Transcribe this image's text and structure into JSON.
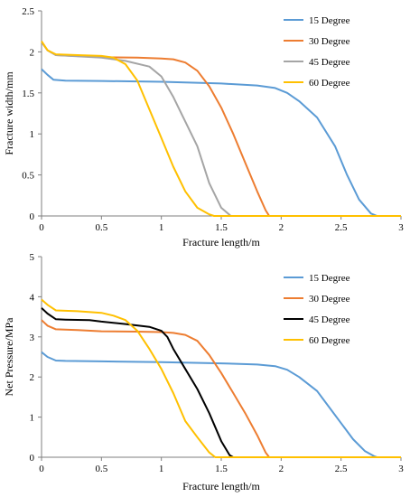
{
  "chart_data": [
    {
      "type": "line",
      "xlabel": "Fracture length/m",
      "ylabel": "Fracture width/mm",
      "xlim": [
        0,
        3
      ],
      "ylim": [
        0,
        2.5
      ],
      "xticks": [
        "0",
        "0.5",
        "1",
        "1.5",
        "2",
        "2.5",
        "3"
      ],
      "yticks": [
        "0",
        "0.5",
        "1",
        "1.5",
        "2",
        "2.5"
      ],
      "grid": false,
      "legend_position": "top-right",
      "series": [
        {
          "name": "15 Degree",
          "color": "#5B9BD5",
          "points": [
            [
              0,
              1.79
            ],
            [
              0.05,
              1.72
            ],
            [
              0.1,
              1.66
            ],
            [
              0.2,
              1.65
            ],
            [
              0.5,
              1.645
            ],
            [
              1.0,
              1.635
            ],
            [
              1.5,
              1.615
            ],
            [
              1.8,
              1.59
            ],
            [
              1.95,
              1.56
            ],
            [
              2.05,
              1.5
            ],
            [
              2.15,
              1.4
            ],
            [
              2.3,
              1.2
            ],
            [
              2.45,
              0.85
            ],
            [
              2.55,
              0.5
            ],
            [
              2.65,
              0.2
            ],
            [
              2.75,
              0.03
            ],
            [
              2.8,
              0
            ],
            [
              3.0,
              0
            ]
          ]
        },
        {
          "name": "30 Degree",
          "color": "#ED7D31",
          "points": [
            [
              0,
              2.12
            ],
            [
              0.05,
              2.02
            ],
            [
              0.12,
              1.96
            ],
            [
              0.5,
              1.935
            ],
            [
              0.8,
              1.93
            ],
            [
              1.0,
              1.92
            ],
            [
              1.1,
              1.91
            ],
            [
              1.2,
              1.87
            ],
            [
              1.3,
              1.77
            ],
            [
              1.4,
              1.58
            ],
            [
              1.5,
              1.32
            ],
            [
              1.6,
              1.0
            ],
            [
              1.7,
              0.65
            ],
            [
              1.8,
              0.3
            ],
            [
              1.87,
              0.07
            ],
            [
              1.9,
              0
            ],
            [
              3.0,
              0
            ]
          ]
        },
        {
          "name": "45 Degree",
          "color": "#A5A5A5",
          "points": [
            [
              0,
              2.12
            ],
            [
              0.05,
              2.02
            ],
            [
              0.12,
              1.96
            ],
            [
              0.5,
              1.93
            ],
            [
              0.7,
              1.89
            ],
            [
              0.9,
              1.82
            ],
            [
              1.0,
              1.7
            ],
            [
              1.1,
              1.45
            ],
            [
              1.2,
              1.15
            ],
            [
              1.3,
              0.85
            ],
            [
              1.4,
              0.4
            ],
            [
              1.5,
              0.1
            ],
            [
              1.58,
              0
            ],
            [
              3.0,
              0
            ]
          ]
        },
        {
          "name": "60 Degree",
          "color": "#FFC000",
          "points": [
            [
              0,
              2.13
            ],
            [
              0.05,
              2.02
            ],
            [
              0.12,
              1.97
            ],
            [
              0.3,
              1.96
            ],
            [
              0.5,
              1.95
            ],
            [
              0.6,
              1.93
            ],
            [
              0.7,
              1.85
            ],
            [
              0.8,
              1.65
            ],
            [
              0.9,
              1.3
            ],
            [
              1.0,
              0.95
            ],
            [
              1.1,
              0.6
            ],
            [
              1.2,
              0.3
            ],
            [
              1.3,
              0.1
            ],
            [
              1.4,
              0.02
            ],
            [
              1.44,
              0
            ],
            [
              3.0,
              0
            ]
          ]
        }
      ]
    },
    {
      "type": "line",
      "xlabel": "Fracture length/m",
      "ylabel": "Net Pressure/MPa",
      "xlim": [
        0,
        3
      ],
      "ylim": [
        0,
        5
      ],
      "xticks": [
        "0",
        "0.5",
        "1",
        "1.5",
        "2",
        "2.5",
        "3"
      ],
      "yticks": [
        "0",
        "1",
        "2",
        "3",
        "4",
        "5"
      ],
      "grid": false,
      "legend_position": "top-right",
      "series": [
        {
          "name": "15 Degree",
          "color": "#5B9BD5",
          "points": [
            [
              0,
              2.62
            ],
            [
              0.05,
              2.5
            ],
            [
              0.12,
              2.41
            ],
            [
              0.2,
              2.4
            ],
            [
              0.5,
              2.39
            ],
            [
              1.0,
              2.37
            ],
            [
              1.5,
              2.34
            ],
            [
              1.8,
              2.31
            ],
            [
              1.95,
              2.27
            ],
            [
              2.05,
              2.18
            ],
            [
              2.15,
              2.0
            ],
            [
              2.3,
              1.65
            ],
            [
              2.4,
              1.25
            ],
            [
              2.5,
              0.85
            ],
            [
              2.6,
              0.45
            ],
            [
              2.7,
              0.15
            ],
            [
              2.78,
              0.02
            ],
            [
              2.8,
              0
            ],
            [
              3.0,
              0
            ]
          ]
        },
        {
          "name": "30 Degree",
          "color": "#ED7D31",
          "points": [
            [
              0,
              3.42
            ],
            [
              0.05,
              3.28
            ],
            [
              0.12,
              3.19
            ],
            [
              0.3,
              3.17
            ],
            [
              0.5,
              3.14
            ],
            [
              0.8,
              3.13
            ],
            [
              1.0,
              3.12
            ],
            [
              1.1,
              3.1
            ],
            [
              1.2,
              3.05
            ],
            [
              1.3,
              2.9
            ],
            [
              1.4,
              2.55
            ],
            [
              1.5,
              2.1
            ],
            [
              1.6,
              1.6
            ],
            [
              1.7,
              1.1
            ],
            [
              1.8,
              0.55
            ],
            [
              1.87,
              0.12
            ],
            [
              1.9,
              0
            ],
            [
              3.0,
              0
            ]
          ]
        },
        {
          "name": "45 Degree",
          "color": "#000000",
          "points": [
            [
              0,
              3.72
            ],
            [
              0.05,
              3.58
            ],
            [
              0.12,
              3.44
            ],
            [
              0.2,
              3.43
            ],
            [
              0.4,
              3.42
            ],
            [
              0.5,
              3.38
            ],
            [
              0.7,
              3.32
            ],
            [
              0.9,
              3.25
            ],
            [
              1.0,
              3.15
            ],
            [
              1.05,
              3.0
            ],
            [
              1.1,
              2.7
            ],
            [
              1.2,
              2.2
            ],
            [
              1.3,
              1.7
            ],
            [
              1.4,
              1.1
            ],
            [
              1.5,
              0.4
            ],
            [
              1.57,
              0.05
            ],
            [
              1.6,
              0
            ],
            [
              3.0,
              0
            ]
          ]
        },
        {
          "name": "60 Degree",
          "color": "#FFC000",
          "points": [
            [
              0,
              3.93
            ],
            [
              0.05,
              3.8
            ],
            [
              0.12,
              3.66
            ],
            [
              0.3,
              3.64
            ],
            [
              0.5,
              3.6
            ],
            [
              0.6,
              3.53
            ],
            [
              0.7,
              3.42
            ],
            [
              0.8,
              3.15
            ],
            [
              0.9,
              2.7
            ],
            [
              1.0,
              2.2
            ],
            [
              1.1,
              1.6
            ],
            [
              1.2,
              0.9
            ],
            [
              1.3,
              0.5
            ],
            [
              1.4,
              0.12
            ],
            [
              1.45,
              0
            ],
            [
              3.0,
              0
            ]
          ]
        }
      ]
    }
  ]
}
